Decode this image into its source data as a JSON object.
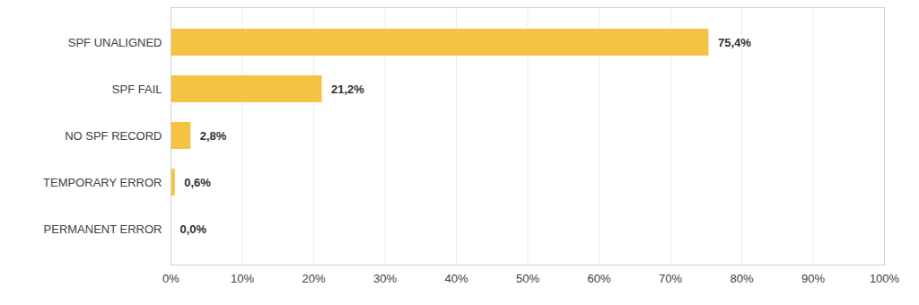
{
  "chart_data": {
    "type": "bar",
    "orientation": "horizontal",
    "categories": [
      "SPF UNALIGNED",
      "SPF FAIL",
      "NO SPF RECORD",
      "TEMPORARY ERROR",
      "PERMANENT ERROR"
    ],
    "values": [
      75.4,
      21.2,
      2.8,
      0.6,
      0.0
    ],
    "value_labels": [
      "75,4%",
      "21,2%",
      "2,8%",
      "0,6%",
      "0,0%"
    ],
    "color": "#f5c342",
    "xlim": [
      0,
      100
    ],
    "xticks": [
      {
        "value": 0,
        "label": "0%"
      },
      {
        "value": 10,
        "label": "10%"
      },
      {
        "value": 20,
        "label": "20%"
      },
      {
        "value": 30,
        "label": "30%"
      },
      {
        "value": 40,
        "label": "40%"
      },
      {
        "value": 50,
        "label": "50%"
      },
      {
        "value": 60,
        "label": "60%"
      },
      {
        "value": 70,
        "label": "70%"
      },
      {
        "value": 80,
        "label": "80%"
      },
      {
        "value": 90,
        "label": "90%"
      },
      {
        "value": 100,
        "label": "100%"
      }
    ],
    "grid": true,
    "data_labels": true
  }
}
